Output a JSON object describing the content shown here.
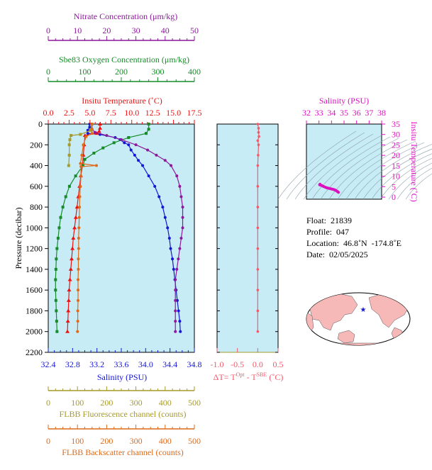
{
  "chart_data": {
    "type": "line",
    "colors": {
      "nitrate": "#8b1a9a",
      "oxygen": "#178a2a",
      "temperature": "#ee1111",
      "salinity": "#1616d6",
      "fluorescence": "#a69a2a",
      "backscatter": "#de6a1a",
      "delta_t": "#f05a6a",
      "ts": "#dd10c0",
      "plot_bg": "#c8ecf6"
    },
    "main": {
      "ylabel": "Pressure (decibar)",
      "ylim": [
        2200,
        0
      ],
      "yticks": [
        "0",
        "200",
        "400",
        "600",
        "800",
        "1000",
        "1200",
        "1400",
        "1600",
        "1800",
        "2000",
        "2200"
      ],
      "axes": [
        {
          "key": "nitrate",
          "label": "Nitrate Concentration (μm/kg)",
          "range": [
            0,
            50
          ],
          "ticks": [
            "0",
            "10",
            "20",
            "30",
            "40",
            "50"
          ]
        },
        {
          "key": "oxygen",
          "label": "Sbe83 Oxygen Concentration (μm/kg)",
          "range": [
            0,
            400
          ],
          "ticks": [
            "0",
            "100",
            "200",
            "300",
            "400"
          ]
        },
        {
          "key": "temperature",
          "label": "Insitu Temperature (˚C)",
          "range": [
            0,
            17.5
          ],
          "ticks": [
            "0.0",
            "2.5",
            "5.0",
            "7.5",
            "10.0",
            "12.5",
            "15.0",
            "17.5"
          ]
        },
        {
          "key": "salinity",
          "label": "Salinity (PSU)",
          "range": [
            32.4,
            34.8
          ],
          "ticks": [
            "32.4",
            "32.8",
            "33.2",
            "33.6",
            "34.0",
            "34.4",
            "34.8"
          ]
        },
        {
          "key": "fluorescence",
          "label": "FLBB Fluorescence channel (counts)",
          "range": [
            0,
            500
          ],
          "ticks": [
            "0",
            "100",
            "200",
            "300",
            "400",
            "500"
          ]
        },
        {
          "key": "backscatter",
          "label": "FLBB Backscatter channel (counts)",
          "range": [
            0,
            500
          ],
          "ticks": [
            "0",
            "100",
            "200",
            "300",
            "400",
            "500"
          ]
        }
      ],
      "series": [
        {
          "key": "salinity",
          "points": [
            [
              33.08,
              0
            ],
            [
              33.08,
              30
            ],
            [
              33.05,
              60
            ],
            [
              33.05,
              90
            ],
            [
              33.25,
              100
            ],
            [
              33.5,
              130
            ],
            [
              33.58,
              150
            ],
            [
              33.65,
              180
            ],
            [
              33.72,
              200
            ],
            [
              33.76,
              250
            ],
            [
              33.82,
              300
            ],
            [
              33.88,
              350
            ],
            [
              33.95,
              400
            ],
            [
              34.05,
              500
            ],
            [
              34.15,
              600
            ],
            [
              34.22,
              700
            ],
            [
              34.28,
              800
            ],
            [
              34.32,
              900
            ],
            [
              34.36,
              1000
            ],
            [
              34.39,
              1100
            ],
            [
              34.41,
              1200
            ],
            [
              34.44,
              1300
            ],
            [
              34.46,
              1400
            ],
            [
              34.48,
              1500
            ],
            [
              34.5,
              1600
            ],
            [
              34.52,
              1700
            ],
            [
              34.54,
              1800
            ],
            [
              34.56,
              1900
            ],
            [
              34.57,
              2000
            ]
          ]
        },
        {
          "key": "temperature",
          "points": [
            [
              6.2,
              0
            ],
            [
              6.2,
              40
            ],
            [
              6.1,
              70
            ],
            [
              5.8,
              90
            ],
            [
              4.4,
              110
            ],
            [
              4.3,
              200
            ],
            [
              4.2,
              300
            ],
            [
              4.1,
              400
            ],
            [
              3.9,
              500
            ],
            [
              3.75,
              600
            ],
            [
              3.6,
              700
            ],
            [
              3.45,
              800
            ],
            [
              3.3,
              900
            ],
            [
              3.15,
              1000
            ],
            [
              3.0,
              1100
            ],
            [
              2.9,
              1200
            ],
            [
              2.8,
              1300
            ],
            [
              2.7,
              1400
            ],
            [
              2.6,
              1500
            ],
            [
              2.5,
              1600
            ],
            [
              2.45,
              1700
            ],
            [
              2.4,
              1800
            ],
            [
              2.35,
              1900
            ],
            [
              2.3,
              2000
            ]
          ]
        },
        {
          "key": "oxygen",
          "points": [
            [
              275,
              0
            ],
            [
              275,
              50
            ],
            [
              268,
              90
            ],
            [
              220,
              130
            ],
            [
              180,
              180
            ],
            [
              150,
              230
            ],
            [
              125,
              280
            ],
            [
              100,
              340
            ],
            [
              95,
              400
            ],
            [
              75,
              500
            ],
            [
              58,
              600
            ],
            [
              48,
              700
            ],
            [
              40,
              800
            ],
            [
              34,
              900
            ],
            [
              30,
              1000
            ],
            [
              27,
              1100
            ],
            [
              24,
              1200
            ],
            [
              22,
              1300
            ],
            [
              21,
              1400
            ],
            [
              20,
              1500
            ],
            [
              20,
              1600
            ],
            [
              21,
              1700
            ],
            [
              22,
              1800
            ],
            [
              23,
              1900
            ],
            [
              24,
              2000
            ]
          ]
        },
        {
          "key": "nitrate",
          "points": [
            [
              15,
              0
            ],
            [
              15,
              50
            ],
            [
              16,
              80
            ],
            [
              20,
              110
            ],
            [
              25,
              150
            ],
            [
              30,
              200
            ],
            [
              34,
              250
            ],
            [
              37,
              300
            ],
            [
              40,
              350
            ],
            [
              42,
              400
            ],
            [
              44,
              500
            ],
            [
              45,
              600
            ],
            [
              45.5,
              700
            ],
            [
              46,
              800
            ],
            [
              46,
              900
            ],
            [
              46,
              1000
            ],
            [
              45.5,
              1100
            ],
            [
              45,
              1200
            ],
            [
              44.5,
              1300
            ],
            [
              44,
              1400
            ],
            [
              43.5,
              1500
            ],
            [
              43.5,
              1600
            ],
            [
              43.5,
              1700
            ],
            [
              43.5,
              1800
            ],
            [
              43.5,
              1900
            ],
            [
              43.5,
              2000
            ]
          ]
        },
        {
          "key": "fluorescence",
          "points": [
            [
              150,
              0
            ],
            [
              145,
              60
            ],
            [
              110,
              100
            ],
            [
              78,
              110
            ],
            [
              74,
              150
            ],
            [
              72,
              200
            ],
            [
              72,
              300
            ],
            [
              70,
              400
            ]
          ]
        },
        {
          "key": "backscatter",
          "points": [
            [
              148,
              0
            ],
            [
              150,
              50
            ],
            [
              150,
              90
            ],
            [
              130,
              120
            ],
            [
              120,
              200
            ],
            [
              115,
              300
            ],
            [
              110,
              380
            ],
            [
              165,
              400
            ],
            [
              112,
              410
            ],
            [
              112,
              500
            ],
            [
              110,
              600
            ],
            [
              108,
              700
            ],
            [
              107,
              800
            ],
            [
              106,
              900
            ],
            [
              105,
              1000
            ],
            [
              104,
              1100
            ],
            [
              104,
              1200
            ],
            [
              103,
              1300
            ],
            [
              103,
              1400
            ],
            [
              102,
              1500
            ],
            [
              102,
              1600
            ],
            [
              102,
              1700
            ],
            [
              101,
              1800
            ],
            [
              101,
              1900
            ],
            [
              100,
              2000
            ]
          ]
        }
      ]
    },
    "delta": {
      "xlabel": "ΔT= T",
      "xlabel_sup1": "Opt",
      "xlabel_mid": " - T",
      "xlabel_sup2": "SBE",
      "xlabel_end": " (˚C)",
      "range": [
        -1.0,
        0.5
      ],
      "ticks": [
        "-1.0",
        "-0.5",
        "0.0",
        "0.5"
      ],
      "points": [
        [
          0.0,
          0
        ],
        [
          0.02,
          40
        ],
        [
          0.02,
          80
        ],
        [
          0.03,
          120
        ],
        [
          0.0,
          160
        ],
        [
          0.02,
          200
        ],
        [
          0.01,
          300
        ],
        [
          0.0,
          400
        ],
        [
          0.0,
          600
        ],
        [
          0.0,
          800
        ],
        [
          0.0,
          1000
        ],
        [
          0.0,
          1200
        ],
        [
          0.0,
          1400
        ],
        [
          0.0,
          1600
        ],
        [
          0.0,
          1800
        ],
        [
          0.0,
          2000
        ]
      ]
    },
    "ts": {
      "xlabel": "Salinity (PSU)",
      "ylabel": "Insitu Temperature (˚C)",
      "xrange": [
        32,
        38
      ],
      "yrange": [
        -1,
        35
      ],
      "xticks": [
        "32",
        "33",
        "34",
        "35",
        "36",
        "37",
        "38"
      ],
      "yticks": [
        "0",
        "5",
        "10",
        "15",
        "20",
        "25",
        "30",
        "35"
      ],
      "points": [
        [
          33.08,
          6.2
        ],
        [
          33.05,
          5.9
        ],
        [
          33.2,
          5.6
        ],
        [
          33.4,
          5.0
        ],
        [
          33.6,
          4.5
        ],
        [
          33.8,
          4.2
        ],
        [
          34.0,
          3.9
        ],
        [
          34.2,
          3.6
        ],
        [
          34.35,
          3.2
        ],
        [
          34.45,
          2.8
        ],
        [
          34.55,
          2.3
        ]
      ]
    },
    "info": {
      "float": "Float:  21839",
      "profile": "Profile:  047",
      "location": "Location:  46.8˚N  -174.8˚E",
      "date": "Date:  02/05/2025"
    }
  }
}
